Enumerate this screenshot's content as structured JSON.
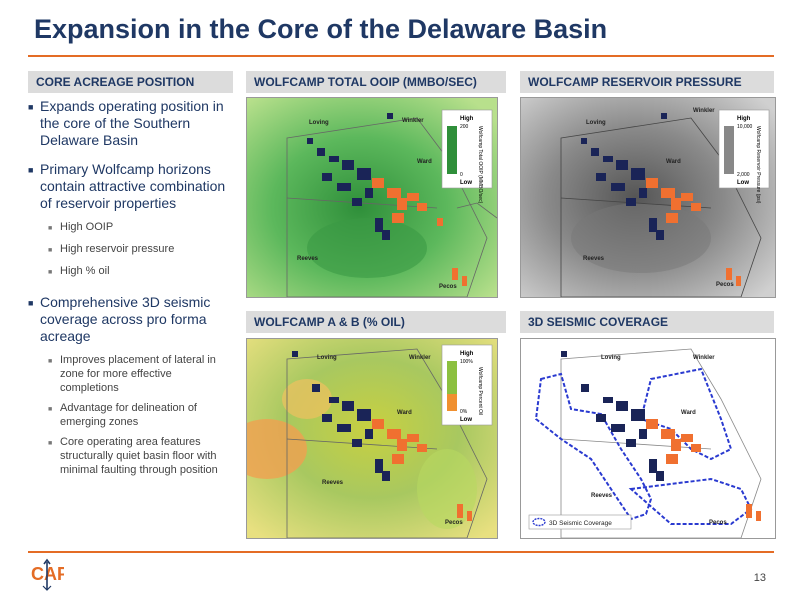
{
  "slide": {
    "title": "Expansion in the Core of the Delaware Basin",
    "page_number": "13"
  },
  "sections": {
    "core_acreage": "CORE ACREAGE POSITION",
    "ooip": "WOLFCAMP TOTAL OOIP (MMBO/SEC)",
    "pressure": "WOLFCAMP RESERVOIR PRESSURE",
    "oil": "WOLFCAMP A & B (% OIL)",
    "seismic": "3D SEISMIC COVERAGE"
  },
  "bullets": [
    {
      "text": "Expands operating position in the core of the Southern Delaware Basin",
      "sub": []
    },
    {
      "text": "Primary Wolfcamp horizons contain attractive combination of reservoir properties",
      "sub": [
        "High OOIP",
        "High reservoir pressure",
        "High % oil"
      ]
    },
    {
      "text": "Comprehensive 3D seismic coverage across pro forma acreage",
      "sub": [
        "Improves placement of lateral in zone for more effective completions",
        "Advantage for delineation of emerging zones",
        "Core operating area features structurally quiet basin floor with minimal faulting through position"
      ]
    }
  ],
  "maps": {
    "counties": {
      "loving": "Loving",
      "winkler": "Winkler",
      "ward": "Ward",
      "reeves": "Reeves",
      "pecos": "Pecos"
    },
    "ooip_legend": {
      "high": "High",
      "high_val": "200",
      "label": "Wolfcamp Total OOIP (MMBO/sec)",
      "low_val": "0",
      "low": "Low"
    },
    "pressure_legend": {
      "high": "High",
      "high_val": "10,000",
      "label": "Wolfcamp Reservoir Pressure (psi)",
      "low_val": "2,000",
      "low": "Low"
    },
    "oil_legend": {
      "high": "High",
      "high_val": "100%",
      "label": "Wolfcamp Percent Oil",
      "low_val": "0%",
      "low": "Low"
    },
    "seismic_legend": "3D Seismic Coverage"
  },
  "colors": {
    "navy": "#1f3864",
    "orange": "#e46c25",
    "header_bg": "#dcdcdc",
    "acreage_blue": "#1a2457",
    "acreage_orange": "#f07030"
  },
  "logo_text": "CAP"
}
